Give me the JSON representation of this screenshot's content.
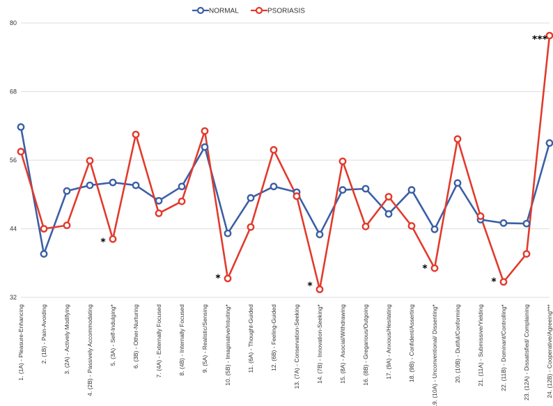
{
  "chart_data": {
    "type": "line",
    "categories": [
      "1. (1A) - Pleasure-Enhancing",
      "2. (1B) - Pain-Avoiding",
      "3. (2A) - Actively Modifying",
      "4. (2B) - Passively Accommodating",
      "5. (3A) - Self-Indulging*",
      "6. (3B) - Other-Nurturing",
      "7. (4A) - Externally Focused",
      "8. (4B) - Internally Focused",
      "9. (5A) - Realistic/Sensing",
      "10. (5B) - Imaginative/Intuiting*",
      "11. (6A) - Thought-Guided",
      "12. (6B) - Feeling-Guided",
      "13. (7A) - Conservation-Seeking",
      "14. (7B) - Innovation-Seeking*",
      "15. (8A) - Asocial/Withdrawing",
      "16. (8B) - Gregarious/Outgoing",
      "17. (9A) - Anxious/Hesitating",
      "18. (9B) - Confident/Asserting",
      "19. (10A) - Unconventional/ Dissenting*",
      "20. (10B) - Dutiful/Conforming",
      "21. (11A) - Submissive/Yielding",
      "22. (11B) - Dominant/Controlling*",
      "23. (12A) - Dissatisfied/ Complaining",
      "24. (12B) - Cooperative/Agreeing***"
    ],
    "series": [
      {
        "name": "NORMAL",
        "color": "#3b5fa5",
        "values": [
          61.8,
          39.6,
          50.6,
          51.6,
          52.1,
          51.6,
          48.9,
          51.4,
          58.3,
          43.2,
          49.4,
          51.4,
          50.4,
          43.0,
          50.8,
          51.0,
          46.6,
          50.8,
          43.9,
          52.0,
          45.6,
          45.0,
          44.9,
          59.0
        ]
      },
      {
        "name": "PSORIASIS",
        "color": "#e23a2c",
        "values": [
          57.5,
          44.0,
          44.6,
          55.9,
          42.2,
          60.5,
          46.7,
          48.8,
          61.1,
          35.3,
          44.3,
          57.8,
          49.7,
          33.4,
          55.8,
          44.4,
          49.6,
          44.5,
          37.1,
          59.7,
          46.2,
          34.7,
          39.6,
          77.8
        ]
      }
    ],
    "ylim": [
      32,
      80
    ],
    "yticks": [
      32,
      44,
      56,
      68,
      80
    ],
    "grid": true,
    "legend": "top-center",
    "annotations": [
      {
        "category_index": 4,
        "text": "*"
      },
      {
        "category_index": 9,
        "text": "*"
      },
      {
        "category_index": 13,
        "text": "*"
      },
      {
        "category_index": 18,
        "text": "*"
      },
      {
        "category_index": 21,
        "text": "*"
      },
      {
        "category_index": 23,
        "text": "***"
      }
    ]
  }
}
